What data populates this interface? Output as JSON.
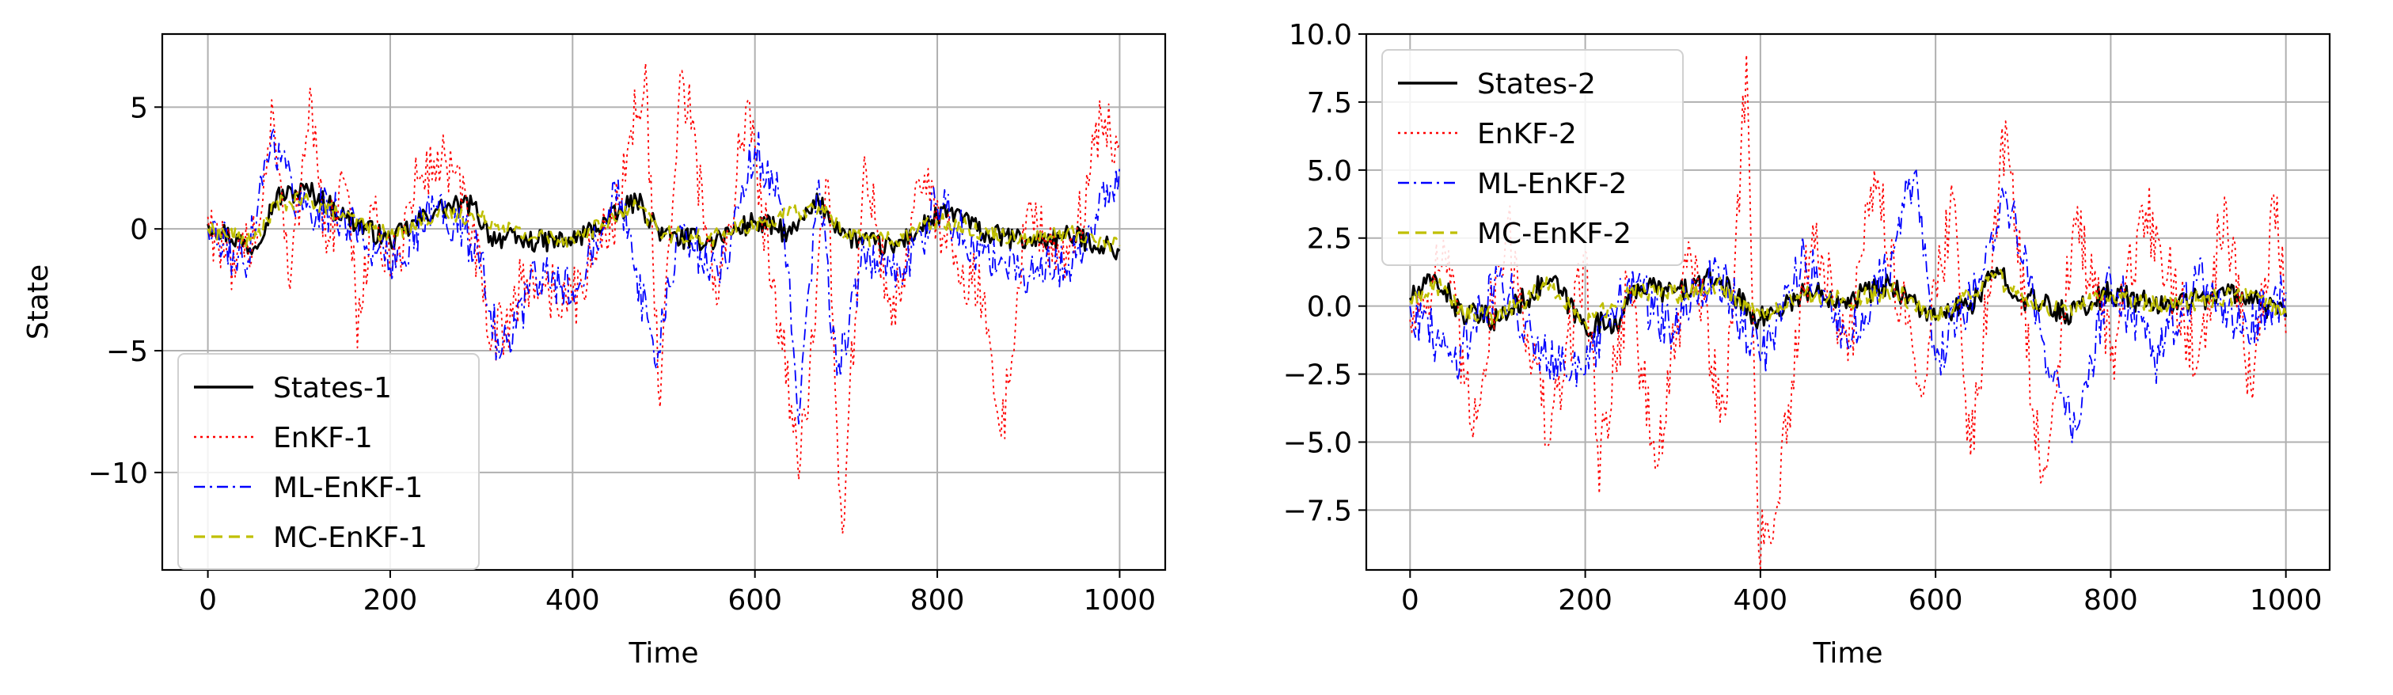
{
  "chart_data": [
    {
      "type": "line",
      "xlabel": "Time",
      "ylabel": "State",
      "xlim": [
        -50,
        1050
      ],
      "ylim": [
        -14,
        8
      ],
      "xticks": [
        0,
        200,
        400,
        600,
        800,
        1000
      ],
      "xtick_labels": [
        "0",
        "200",
        "400",
        "600",
        "800",
        "1000"
      ],
      "yticks": [
        -10,
        -5,
        0,
        5
      ],
      "ytick_labels": [
        "−10",
        "−5",
        "0",
        "5"
      ],
      "grid": true,
      "legend_placement": "lower-left",
      "series": [
        {
          "name": "States-1",
          "color": "#000000",
          "style": "solid",
          "keypoints": [
            [
              0,
              0.2
            ],
            [
              50,
              -0.8
            ],
            [
              75,
              1.3
            ],
            [
              110,
              1.6
            ],
            [
              150,
              0.5
            ],
            [
              200,
              -0.5
            ],
            [
              250,
              0.8
            ],
            [
              290,
              1.0
            ],
            [
              310,
              -0.3
            ],
            [
              350,
              -0.5
            ],
            [
              400,
              -0.5
            ],
            [
              450,
              0.6
            ],
            [
              470,
              1.2
            ],
            [
              500,
              -0.3
            ],
            [
              550,
              -0.5
            ],
            [
              600,
              0.3
            ],
            [
              640,
              -0.2
            ],
            [
              670,
              1.1
            ],
            [
              700,
              -0.3
            ],
            [
              750,
              -0.8
            ],
            [
              800,
              0.5
            ],
            [
              820,
              0.7
            ],
            [
              850,
              -0.2
            ],
            [
              900,
              -0.5
            ],
            [
              950,
              -0.3
            ],
            [
              1000,
              -0.9
            ]
          ]
        },
        {
          "name": "EnKF-1",
          "color": "#ff0000",
          "style": "dotted",
          "keypoints": [
            [
              0,
              0.5
            ],
            [
              30,
              -2
            ],
            [
              60,
              1
            ],
            [
              70,
              5.3
            ],
            [
              90,
              -2.5
            ],
            [
              112,
              5.8
            ],
            [
              130,
              -1
            ],
            [
              150,
              2
            ],
            [
              165,
              -4
            ],
            [
              180,
              1
            ],
            [
              200,
              -2
            ],
            [
              230,
              2
            ],
            [
              260,
              3
            ],
            [
              290,
              0
            ],
            [
              310,
              -5
            ],
            [
              350,
              -2
            ],
            [
              400,
              -3
            ],
            [
              450,
              1
            ],
            [
              480,
              6.8
            ],
            [
              495,
              -7.5
            ],
            [
              520,
              6.5
            ],
            [
              560,
              -3
            ],
            [
              590,
              5
            ],
            [
              620,
              -2
            ],
            [
              650,
              -9.5
            ],
            [
              680,
              2
            ],
            [
              695,
              -13
            ],
            [
              720,
              3
            ],
            [
              750,
              -4
            ],
            [
              780,
              2
            ],
            [
              820,
              -1
            ],
            [
              850,
              -3
            ],
            [
              870,
              -8.5
            ],
            [
              900,
              1
            ],
            [
              940,
              -2
            ],
            [
              980,
              4.5
            ],
            [
              1000,
              3.5
            ]
          ]
        },
        {
          "name": "ML-EnKF-1",
          "color": "#0000ff",
          "style": "dashdot",
          "keypoints": [
            [
              0,
              0
            ],
            [
              40,
              -1.5
            ],
            [
              70,
              3.9
            ],
            [
              100,
              1
            ],
            [
              150,
              0.5
            ],
            [
              200,
              -1.5
            ],
            [
              250,
              1
            ],
            [
              300,
              -1
            ],
            [
              320,
              -5.3
            ],
            [
              360,
              -2
            ],
            [
              400,
              -2.5
            ],
            [
              450,
              2
            ],
            [
              490,
              -5.5
            ],
            [
              520,
              0
            ],
            [
              560,
              -2
            ],
            [
              600,
              3.3
            ],
            [
              630,
              1
            ],
            [
              648,
              -8
            ],
            [
              670,
              2
            ],
            [
              690,
              -6
            ],
            [
              720,
              -1
            ],
            [
              760,
              -2
            ],
            [
              800,
              1
            ],
            [
              850,
              -1
            ],
            [
              900,
              -2
            ],
            [
              960,
              -1
            ],
            [
              1000,
              2.6
            ]
          ]
        },
        {
          "name": "MC-EnKF-1",
          "color": "#bfbf00",
          "style": "dashed",
          "keypoints": [
            [
              0,
              0
            ],
            [
              50,
              -0.5
            ],
            [
              75,
              1
            ],
            [
              110,
              1.2
            ],
            [
              150,
              0.5
            ],
            [
              200,
              -0.3
            ],
            [
              250,
              0.6
            ],
            [
              300,
              0.5
            ],
            [
              350,
              -0.3
            ],
            [
              400,
              -0.4
            ],
            [
              450,
              0.5
            ],
            [
              470,
              0.9
            ],
            [
              500,
              -0.2
            ],
            [
              550,
              -0.4
            ],
            [
              600,
              0.2
            ],
            [
              670,
              0.9
            ],
            [
              700,
              -0.2
            ],
            [
              750,
              -0.5
            ],
            [
              800,
              0.4
            ],
            [
              850,
              -0.1
            ],
            [
              900,
              -0.4
            ],
            [
              950,
              -0.2
            ],
            [
              1000,
              -0.7
            ]
          ]
        }
      ]
    },
    {
      "type": "line",
      "xlabel": "Time",
      "ylabel": "",
      "xlim": [
        -50,
        1050
      ],
      "ylim": [
        -9.7,
        10.0
      ],
      "xticks": [
        0,
        200,
        400,
        600,
        800,
        1000
      ],
      "xtick_labels": [
        "0",
        "200",
        "400",
        "600",
        "800",
        "1000"
      ],
      "yticks": [
        -7.5,
        -5.0,
        -2.5,
        0.0,
        2.5,
        5.0,
        7.5,
        10.0
      ],
      "ytick_labels": [
        "−7.5",
        "−5.0",
        "−2.5",
        "0.0",
        "2.5",
        "5.0",
        "7.5",
        "10.0"
      ],
      "grid": true,
      "legend_placement": "upper-left",
      "series": [
        {
          "name": "States-2",
          "color": "#000000",
          "style": "solid",
          "keypoints": [
            [
              0,
              0.3
            ],
            [
              30,
              1
            ],
            [
              60,
              -0.3
            ],
            [
              100,
              -0.5
            ],
            [
              160,
              1
            ],
            [
              200,
              -0.8
            ],
            [
              240,
              -0.5
            ],
            [
              260,
              0.8
            ],
            [
              300,
              0.5
            ],
            [
              350,
              1
            ],
            [
              400,
              -0.5
            ],
            [
              450,
              0.5
            ],
            [
              500,
              0.3
            ],
            [
              550,
              0.8
            ],
            [
              600,
              -0.5
            ],
            [
              650,
              0.3
            ],
            [
              670,
              1.4
            ],
            [
              700,
              0.3
            ],
            [
              750,
              -0.3
            ],
            [
              800,
              0.5
            ],
            [
              850,
              0
            ],
            [
              900,
              0.3
            ],
            [
              950,
              0.5
            ],
            [
              1000,
              -0.4
            ]
          ]
        },
        {
          "name": "EnKF-2",
          "color": "#ff0000",
          "style": "dotted",
          "keypoints": [
            [
              0,
              -0.5
            ],
            [
              40,
              2
            ],
            [
              70,
              -4.5
            ],
            [
              110,
              3
            ],
            [
              160,
              -5
            ],
            [
              200,
              2
            ],
            [
              215,
              -5.8
            ],
            [
              250,
              1
            ],
            [
              280,
              -6
            ],
            [
              320,
              2
            ],
            [
              360,
              -4
            ],
            [
              385,
              9.1
            ],
            [
              398,
              -9
            ],
            [
              420,
              -7.2
            ],
            [
              460,
              3
            ],
            [
              500,
              -2
            ],
            [
              530,
              5
            ],
            [
              580,
              -3
            ],
            [
              620,
              4
            ],
            [
              640,
              -5.5
            ],
            [
              680,
              6.8
            ],
            [
              720,
              -6.5
            ],
            [
              760,
              3
            ],
            [
              800,
              -2
            ],
            [
              840,
              3.5
            ],
            [
              900,
              -2
            ],
            [
              930,
              4
            ],
            [
              960,
              -3
            ],
            [
              990,
              4
            ],
            [
              1000,
              -1
            ]
          ]
        },
        {
          "name": "ML-EnKF-2",
          "color": "#0000ff",
          "style": "dashdot",
          "keypoints": [
            [
              0,
              0
            ],
            [
              50,
              -2
            ],
            [
              100,
              1
            ],
            [
              150,
              -1.5
            ],
            [
              200,
              -2.5
            ],
            [
              250,
              1
            ],
            [
              300,
              -1
            ],
            [
              350,
              1.5
            ],
            [
              400,
              -2
            ],
            [
              450,
              2
            ],
            [
              500,
              -1.5
            ],
            [
              550,
              2
            ],
            [
              575,
              4.9
            ],
            [
              600,
              -2
            ],
            [
              650,
              1
            ],
            [
              680,
              4.2
            ],
            [
              720,
              -1
            ],
            [
              760,
              -4.6
            ],
            [
              800,
              1
            ],
            [
              850,
              -2
            ],
            [
              900,
              1
            ],
            [
              950,
              -1
            ],
            [
              1000,
              0.5
            ]
          ]
        },
        {
          "name": "MC-EnKF-2",
          "color": "#bfbf00",
          "style": "dashed",
          "keypoints": [
            [
              0,
              0.2
            ],
            [
              30,
              0.8
            ],
            [
              60,
              -0.2
            ],
            [
              100,
              -0.4
            ],
            [
              160,
              0.8
            ],
            [
              200,
              -0.6
            ],
            [
              260,
              0.6
            ],
            [
              300,
              0.4
            ],
            [
              350,
              0.8
            ],
            [
              400,
              -0.4
            ],
            [
              450,
              0.4
            ],
            [
              500,
              0.2
            ],
            [
              550,
              0.6
            ],
            [
              600,
              -0.4
            ],
            [
              670,
              1.1
            ],
            [
              700,
              0.2
            ],
            [
              750,
              -0.2
            ],
            [
              800,
              0.4
            ],
            [
              850,
              0
            ],
            [
              900,
              0.2
            ],
            [
              950,
              0.4
            ],
            [
              1000,
              -0.3
            ]
          ]
        }
      ]
    }
  ]
}
